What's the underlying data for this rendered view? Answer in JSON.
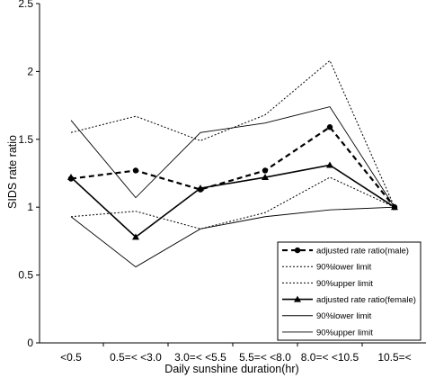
{
  "chart_data": {
    "type": "line",
    "title": "",
    "xlabel": "Daily sunshine duration(hr)",
    "ylabel": "SIDS rate ratio",
    "categories": [
      "<0.5",
      "0.5=< <3.0",
      "3.0=< <5.5",
      "5.5=< <8.0",
      "8.0=< <10.5",
      "10.5=<"
    ],
    "ylim": [
      0,
      2.5
    ],
    "yticks": [
      "0",
      "0.5",
      "1",
      "1.5",
      "2",
      "2.5"
    ],
    "grid": false,
    "legend_position": "bottom-right",
    "series": [
      {
        "name": "adjusted rate ratio(male)",
        "values": [
          1.21,
          1.27,
          1.13,
          1.27,
          1.59,
          1.0
        ],
        "line_style": "dashed-bold",
        "marker": "circle",
        "color": "#000000"
      },
      {
        "name": "90%lower limit",
        "values": [
          0.93,
          0.97,
          0.84,
          0.96,
          1.22,
          1.0
        ],
        "line_style": "dotted",
        "marker": "none",
        "color": "#000000"
      },
      {
        "name": "90%upper limit",
        "values": [
          1.55,
          1.67,
          1.49,
          1.68,
          2.08,
          1.0
        ],
        "line_style": "dotted",
        "marker": "none",
        "color": "#000000"
      },
      {
        "name": "adjusted rate ratio(female)",
        "values": [
          1.22,
          0.78,
          1.14,
          1.22,
          1.31,
          1.0
        ],
        "line_style": "solid-bold",
        "marker": "triangle",
        "color": "#000000"
      },
      {
        "name": "90%lower limit",
        "values": [
          0.93,
          0.56,
          0.84,
          0.93,
          0.98,
          1.0
        ],
        "line_style": "solid-thin",
        "marker": "none",
        "color": "#000000"
      },
      {
        "name": "90%upper limit",
        "values": [
          1.64,
          1.07,
          1.55,
          1.62,
          1.74,
          1.0
        ],
        "line_style": "solid-thin",
        "marker": "none",
        "color": "#000000"
      }
    ]
  }
}
